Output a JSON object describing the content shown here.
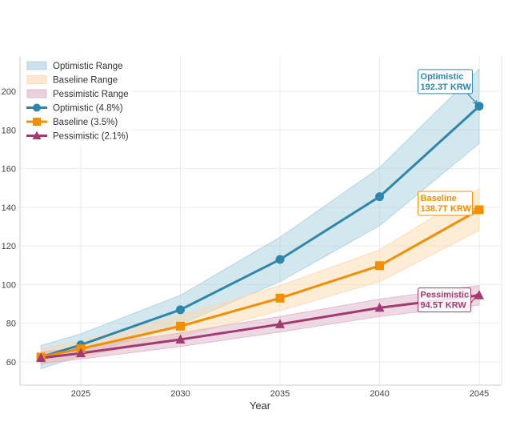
{
  "chart_data": {
    "type": "line",
    "title": "",
    "xlabel": "Year",
    "ylabel": "",
    "x": [
      2023,
      2025,
      2030,
      2035,
      2040,
      2045
    ],
    "xlim": [
      2022,
      2046.2
    ],
    "ylim": [
      48,
      218
    ],
    "xticks": [
      2025,
      2030,
      2035,
      2040,
      2045
    ],
    "yticks": [
      60,
      80,
      100,
      120,
      140,
      160,
      180,
      200
    ],
    "grid": true,
    "legend_position": "top-left",
    "series": [
      {
        "name": "Optimistic (4.8%)",
        "key": "optimistic",
        "color": "#2E86AB",
        "marker": "circle",
        "values": [
          62.5,
          68.8,
          87.0,
          113.0,
          145.5,
          192.3
        ],
        "range_name": "Optimistic Range",
        "range_color": "#A8CFE0",
        "range_low": [
          56.5,
          63.0,
          79.5,
          101.5,
          130.5,
          173.0
        ],
        "range_high": [
          68.5,
          74.5,
          94.5,
          124.5,
          160.5,
          211.5
        ]
      },
      {
        "name": "Baseline (3.5%)",
        "key": "baseline",
        "color": "#F18F01",
        "marker": "square",
        "values": [
          62.5,
          66.8,
          78.5,
          93.0,
          109.8,
          138.7
        ],
        "range_name": "Baseline Range",
        "range_color": "#FBD9AE",
        "range_low": [
          58.5,
          62.5,
          73.0,
          86.5,
          101.5,
          128.0
        ],
        "range_high": [
          66.5,
          71.0,
          84.0,
          99.5,
          118.0,
          149.5
        ]
      },
      {
        "name": "Pessimistic (2.1%)",
        "key": "pessimistic",
        "color": "#A23B72",
        "marker": "triangle",
        "values": [
          62.0,
          64.5,
          71.6,
          79.5,
          88.0,
          94.5
        ],
        "range_name": "Pessimistic Range",
        "range_color": "#DDB2C8",
        "range_low": [
          59.0,
          61.5,
          68.0,
          75.5,
          83.5,
          89.5
        ],
        "range_high": [
          65.0,
          67.5,
          75.0,
          83.5,
          92.5,
          99.5
        ]
      }
    ],
    "annotations": [
      {
        "key": "optimistic",
        "line1": "Optimistic",
        "line2": "192.3T KRW",
        "x": 2045,
        "y": 192.3,
        "text_x": 2042.05,
        "text_y": 210
      },
      {
        "key": "baseline",
        "line1": "Baseline",
        "line2": "138.7T KRW",
        "x": 2045,
        "y": 138.7,
        "text_x": 2042.05,
        "text_y": 147
      },
      {
        "key": "pessimistic",
        "line1": "Pessimistic",
        "line2": "94.5T KRW",
        "x": 2045,
        "y": 94.5,
        "text_x": 2042.05,
        "text_y": 97
      }
    ]
  }
}
